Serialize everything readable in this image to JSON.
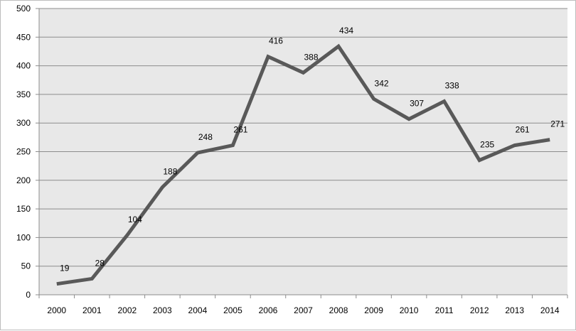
{
  "chart_data": {
    "type": "line",
    "title": "",
    "xlabel": "",
    "ylabel": "",
    "categories": [
      "2000",
      "2001",
      "2002",
      "2003",
      "2004",
      "2005",
      "2006",
      "2007",
      "2008",
      "2009",
      "2010",
      "2011",
      "2012",
      "2013",
      "2014"
    ],
    "series": [
      {
        "values": [
          19,
          28,
          104,
          188,
          248,
          261,
          416,
          388,
          434,
          342,
          307,
          338,
          235,
          261,
          271
        ]
      }
    ],
    "ylim": [
      0,
      500
    ],
    "yticks": [
      0,
      50,
      100,
      150,
      200,
      250,
      300,
      350,
      400,
      450,
      500
    ],
    "grid": "horizontal",
    "legend": "none",
    "data_labels": true,
    "colors": {
      "line": "#595959",
      "plot_background": "#e8e8e8",
      "gridline": "#8c8c8c",
      "axis": "#8c8c8c"
    }
  }
}
